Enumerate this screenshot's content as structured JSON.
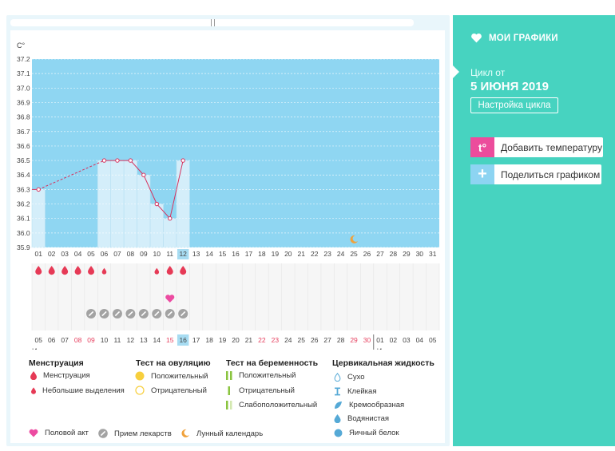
{
  "sidebar": {
    "menu_label": "МОИ ГРАФИКИ",
    "cycle_from_label": "Цикл от",
    "cycle_date": "5 ИЮНЯ 2019",
    "cycle_settings_label": "Настройка цикла",
    "add_temperature_label": "Добавить температуру",
    "add_temperature_icon_text": "t°",
    "share_chart_label": "Поделиться графиком",
    "share_icon_text": "+"
  },
  "chart": {
    "unit_label": "C°",
    "month_start_label": "Июнь",
    "month_end_label": "Июль",
    "highlight_day": "12",
    "highlight_date": "16"
  },
  "chart_data": {
    "type": "line",
    "ylim": [
      35.9,
      37.2
    ],
    "y_ticks": [
      "37.2",
      "37.1",
      "37.0",
      "36.9",
      "36.8",
      "36.7",
      "36.6",
      "36.5",
      "36.4",
      "36.3",
      "36.2",
      "36.1",
      "36.0",
      "35.9"
    ],
    "cycle_days": [
      "01",
      "02",
      "03",
      "04",
      "05",
      "06",
      "07",
      "08",
      "09",
      "10",
      "11",
      "12",
      "13",
      "14",
      "15",
      "16",
      "17",
      "18",
      "19",
      "20",
      "21",
      "22",
      "23",
      "24",
      "25",
      "26",
      "27",
      "28",
      "29",
      "30",
      "31"
    ],
    "dates": [
      "05",
      "06",
      "07",
      "08",
      "09",
      "10",
      "11",
      "12",
      "13",
      "14",
      "15",
      "16",
      "17",
      "18",
      "19",
      "20",
      "21",
      "22",
      "23",
      "24",
      "25",
      "26",
      "27",
      "28",
      "29",
      "30",
      "01",
      "02",
      "03",
      "04",
      "05"
    ],
    "weekend_date_indices": [
      3,
      4,
      10,
      17,
      18,
      24,
      25
    ],
    "temperatures": [
      {
        "day": 1,
        "value": 36.3
      },
      {
        "day": 6,
        "value": 36.5
      },
      {
        "day": 7,
        "value": 36.5
      },
      {
        "day": 8,
        "value": 36.5
      },
      {
        "day": 9,
        "value": 36.4
      },
      {
        "day": 10,
        "value": 36.2
      },
      {
        "day": 11,
        "value": 36.1
      },
      {
        "day": 12,
        "value": 36.5
      }
    ],
    "menstruation_days": [
      1,
      2,
      3,
      4,
      5
    ],
    "spotting_days": [
      6,
      10
    ],
    "menstruation_days_after": [
      11,
      12
    ],
    "intercourse_days": [
      11
    ],
    "medication_days": [
      5,
      6,
      7,
      8,
      9,
      10,
      11,
      12
    ],
    "moon_day": 25
  },
  "legend": {
    "menstruation_title": "Менструация",
    "menstruation_label": "Менструация",
    "spotting_label": "Небольшие выделения",
    "ovulation_title": "Тест на овуляцию",
    "ovulation_positive": "Положительный",
    "ovulation_negative": "Отрицательный",
    "pregnancy_title": "Тест на беременность",
    "pregnancy_positive": "Положительный",
    "pregnancy_negative": "Отрицательный",
    "pregnancy_weak": "Слабоположительный",
    "fluid_title": "Цервикальная жидкость",
    "fluid_dry": "Сухо",
    "fluid_sticky": "Клейкая",
    "fluid_creamy": "Кремообразная",
    "fluid_watery": "Водянистая",
    "fluid_eggwhite": "Яичный белок",
    "intercourse_label": "Половой акт",
    "medication_label": "Прием лекарств",
    "lunar_label": "Лунный календарь"
  },
  "colors": {
    "panel": "#47d3c0",
    "chart_bg": "#8fd6f2",
    "bar_fill": "#d4eefa",
    "line": "#d6315d",
    "blood": "#e63a56",
    "heart": "#ec4ba1",
    "weekend": "#e6405f",
    "moon": "#f0a23c",
    "highlight": "#a7dcf2"
  }
}
